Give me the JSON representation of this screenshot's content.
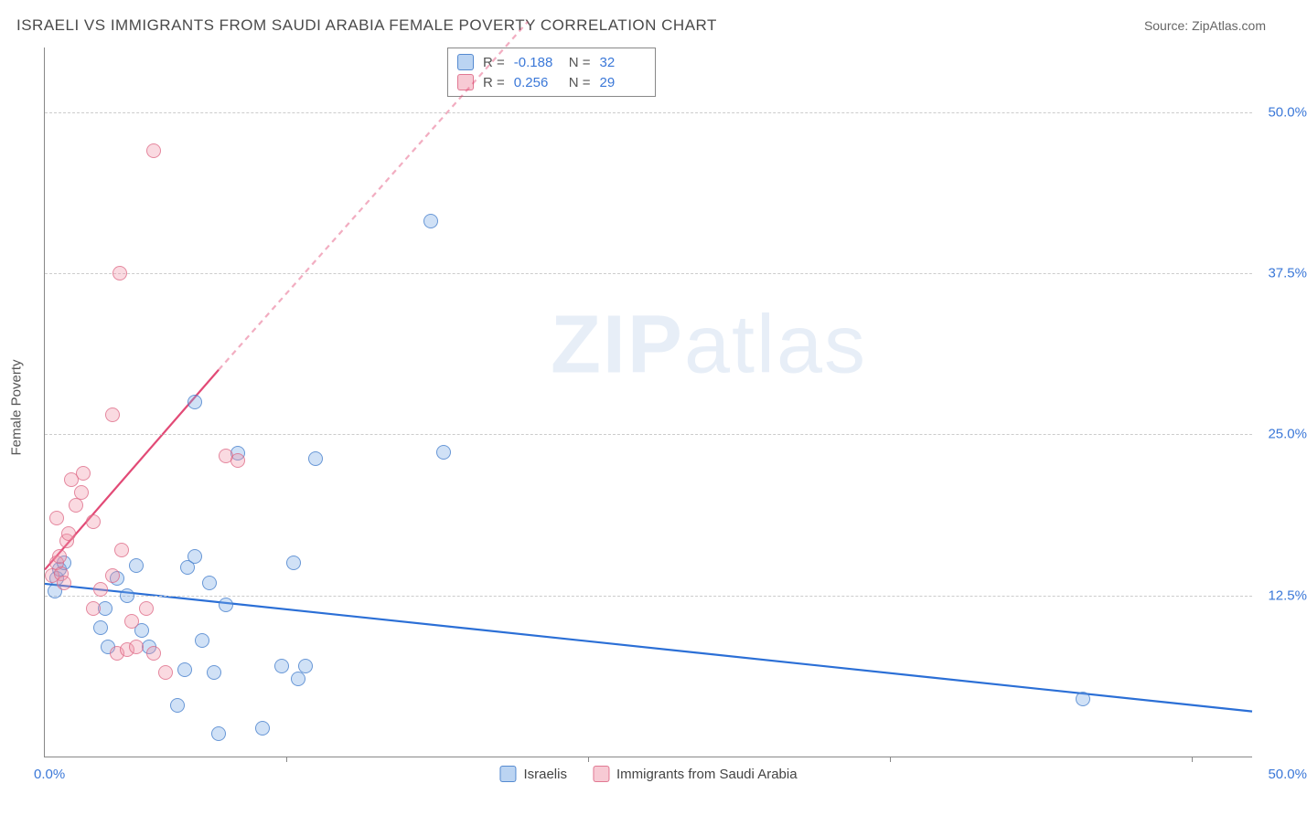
{
  "chart": {
    "type": "scatter",
    "title": "ISRAELI VS IMMIGRANTS FROM SAUDI ARABIA FEMALE POVERTY CORRELATION CHART",
    "source_label": "Source: ZipAtlas.com",
    "yaxis_title": "Female Poverty",
    "watermark": "ZIPatlas",
    "background_color": "#ffffff",
    "grid_color": "#cccccc",
    "axis_color": "#888888",
    "text_color": "#4a4a4a",
    "tick_label_color": "#3b78d8",
    "title_fontsize": 17,
    "label_fontsize": 15,
    "xlim": [
      0,
      50
    ],
    "ylim": [
      0,
      55
    ],
    "yticks": [
      12.5,
      25.0,
      37.5,
      50.0
    ],
    "ytick_labels": [
      "12.5%",
      "25.0%",
      "37.5%",
      "50.0%"
    ],
    "xtick_positions": [
      10,
      22.5,
      35,
      47.5
    ],
    "xtick_label_start": "0.0%",
    "xtick_label_end": "50.0%",
    "stats_legend": {
      "rows": [
        {
          "swatch": "blue",
          "r_label": "R =",
          "r_value": "-0.188",
          "n_label": "N =",
          "n_value": "32"
        },
        {
          "swatch": "pink",
          "r_label": "R =",
          "r_value": "0.256",
          "n_label": "N =",
          "n_value": "29"
        }
      ]
    },
    "series_legend": [
      {
        "swatch": "blue",
        "label": "Israelis"
      },
      {
        "swatch": "pink",
        "label": "Immigrants from Saudi Arabia"
      }
    ],
    "series": [
      {
        "name": "Israelis",
        "color_fill": "rgba(120,170,230,0.35)",
        "color_stroke": "rgba(60,120,200,0.7)",
        "marker_size": 16,
        "class": "blue",
        "trend": {
          "x1": 0,
          "y1": 13.4,
          "x2": 50,
          "y2": 3.5,
          "color": "#2b6fd6",
          "width": 2.2,
          "dash": "none"
        },
        "points": [
          [
            0.4,
            12.8
          ],
          [
            0.5,
            13.8
          ],
          [
            0.6,
            14.5
          ],
          [
            0.8,
            15.0
          ],
          [
            2.3,
            10.0
          ],
          [
            2.5,
            11.5
          ],
          [
            3.0,
            13.8
          ],
          [
            3.4,
            12.5
          ],
          [
            3.8,
            14.8
          ],
          [
            5.5,
            4.0
          ],
          [
            5.8,
            6.7
          ],
          [
            4.3,
            8.5
          ],
          [
            4.0,
            9.8
          ],
          [
            2.6,
            8.5
          ],
          [
            5.9,
            14.7
          ],
          [
            6.2,
            15.5
          ],
          [
            6.5,
            9.0
          ],
          [
            6.8,
            13.5
          ],
          [
            6.2,
            27.5
          ],
          [
            7.0,
            6.5
          ],
          [
            7.2,
            1.8
          ],
          [
            7.5,
            11.8
          ],
          [
            8.0,
            23.5
          ],
          [
            9.0,
            2.2
          ],
          [
            9.8,
            7.0
          ],
          [
            10.3,
            15.0
          ],
          [
            10.5,
            6.0
          ],
          [
            10.8,
            7.0
          ],
          [
            11.2,
            23.1
          ],
          [
            16.5,
            23.6
          ],
          [
            16.0,
            41.5
          ],
          [
            43.0,
            4.5
          ]
        ]
      },
      {
        "name": "Immigrants from Saudi Arabia",
        "color_fill": "rgba(240,150,170,0.35)",
        "color_stroke": "rgba(220,100,130,0.7)",
        "marker_size": 16,
        "class": "pink",
        "trend": {
          "x1": 0,
          "y1": 14.5,
          "x2": 7.2,
          "y2": 30.0,
          "color": "#e24a76",
          "width": 2.2,
          "dash": "none",
          "extend": {
            "x2": 20,
            "y2": 57,
            "dash": "6 5",
            "color": "rgba(226,74,118,0.45)"
          }
        },
        "points": [
          [
            0.3,
            14.0
          ],
          [
            0.5,
            15.0
          ],
          [
            0.6,
            15.5
          ],
          [
            0.7,
            14.2
          ],
          [
            0.8,
            13.5
          ],
          [
            0.9,
            16.7
          ],
          [
            1.0,
            17.3
          ],
          [
            0.5,
            18.5
          ],
          [
            1.3,
            19.5
          ],
          [
            1.5,
            20.5
          ],
          [
            1.1,
            21.5
          ],
          [
            1.6,
            22.0
          ],
          [
            2.0,
            18.2
          ],
          [
            2.0,
            11.5
          ],
          [
            2.3,
            13.0
          ],
          [
            2.8,
            14.0
          ],
          [
            3.2,
            16.0
          ],
          [
            3.6,
            10.5
          ],
          [
            3.0,
            8.0
          ],
          [
            3.4,
            8.3
          ],
          [
            3.8,
            8.5
          ],
          [
            4.2,
            11.5
          ],
          [
            4.5,
            8.0
          ],
          [
            5.0,
            6.5
          ],
          [
            2.8,
            26.5
          ],
          [
            3.1,
            37.5
          ],
          [
            4.5,
            47.0
          ],
          [
            7.5,
            23.3
          ],
          [
            8.0,
            23.0
          ]
        ]
      }
    ]
  }
}
